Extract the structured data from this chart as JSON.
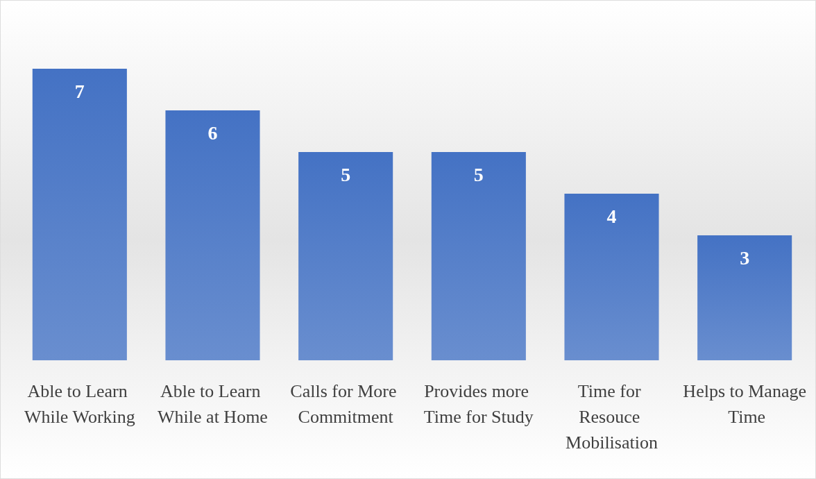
{
  "chart_data": {
    "type": "bar",
    "categories": [
      "Able to Learn While Working",
      "Able to Learn While at Home",
      "Calls for More Commitment",
      "Provides more Time for Study",
      "Time for Resouce Mobilisation",
      "Helps to Manage Time"
    ],
    "values": [
      7,
      6,
      5,
      5,
      4,
      3
    ],
    "color": "#4472c4",
    "data_labels": true
  }
}
